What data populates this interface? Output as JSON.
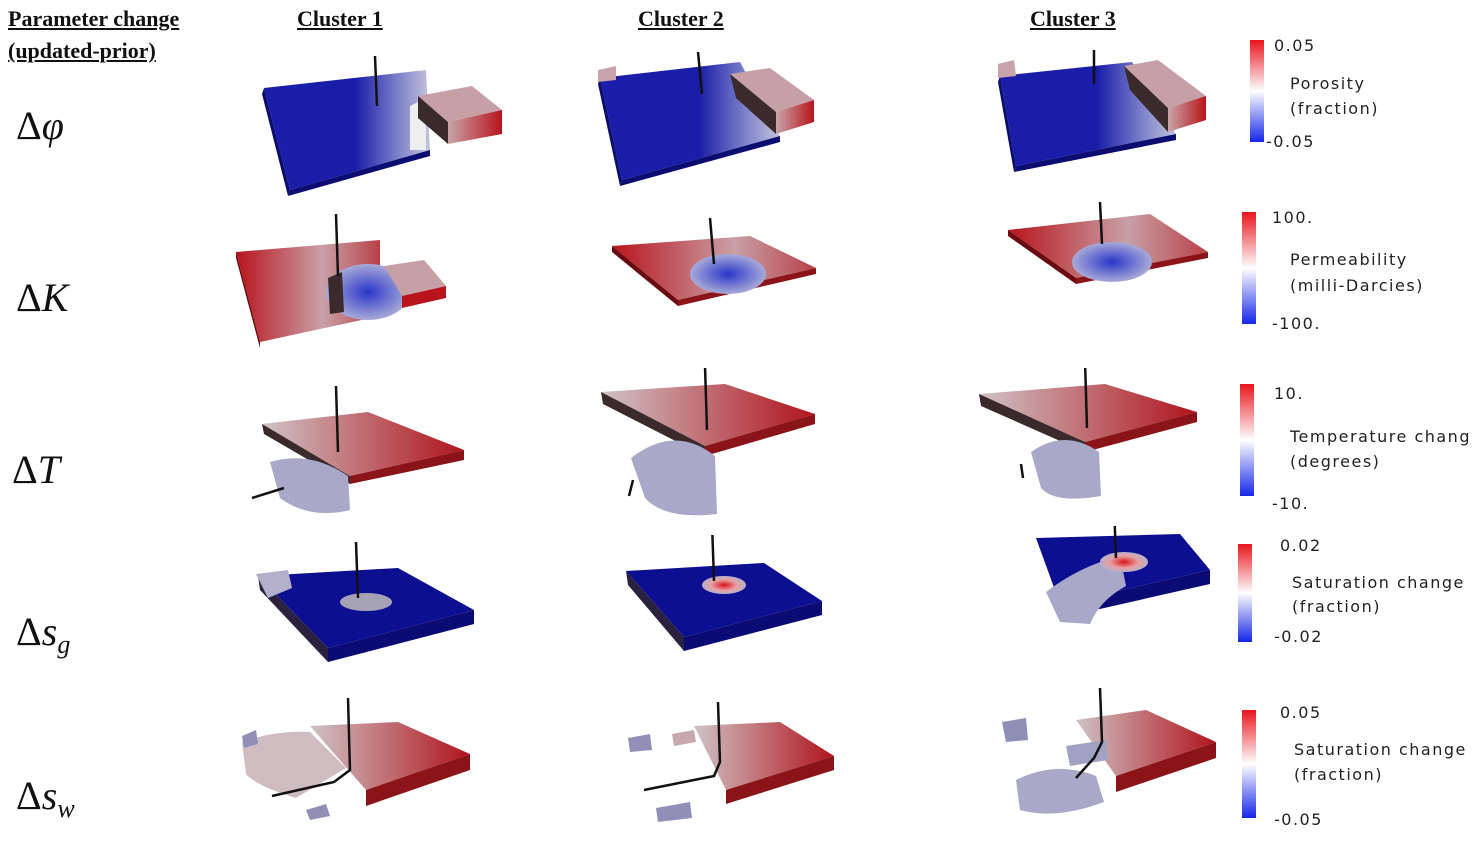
{
  "header": {
    "param_title_line1": "Parameter change",
    "param_title_line2": "(updated-prior)",
    "clusters": [
      "Cluster 1",
      "Cluster 2",
      "Cluster 3"
    ]
  },
  "rows": [
    {
      "symbol": "Δφ",
      "delta": "Δ",
      "var": "φ",
      "sub": ""
    },
    {
      "symbol": "ΔK",
      "delta": "Δ",
      "var": "K",
      "sub": ""
    },
    {
      "symbol": "ΔT",
      "delta": "Δ",
      "var": "T",
      "sub": ""
    },
    {
      "symbol": "Δs_g",
      "delta": "Δ",
      "var": "s",
      "sub": "g"
    },
    {
      "symbol": "Δs_w",
      "delta": "Δ",
      "var": "s",
      "sub": "w"
    }
  ],
  "colorbars": [
    {
      "max": "0.05",
      "min": "-0.05",
      "label1": "Porosity",
      "label2": "(fraction)"
    },
    {
      "max": "100.",
      "min": "-100.",
      "label1": "Permeability",
      "label2": "(milli-Darcies)"
    },
    {
      "max": "10.",
      "min": "-10.",
      "label1": "Temperature change",
      "label2": "(degrees)"
    },
    {
      "max": "0.02",
      "min": "-0.02",
      "label1": "Saturation change",
      "label2": "(fraction)"
    },
    {
      "max": "0.05",
      "min": "-0.05",
      "label1": "Saturation change",
      "label2": "(fraction)"
    }
  ],
  "colors": {
    "deep_blue": "#10149c",
    "deep_red": "#9c0d0d",
    "neutral_gray": "#c9c0c4",
    "well": "#111111"
  }
}
